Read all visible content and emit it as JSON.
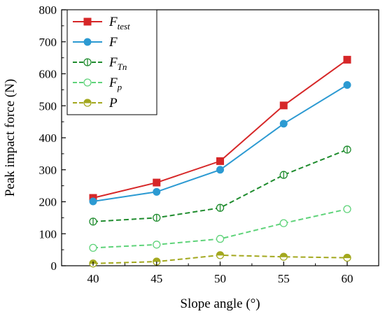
{
  "chart_data": {
    "type": "line",
    "categories": [
      "40",
      "45",
      "50",
      "55",
      "60"
    ],
    "x": [
      40,
      45,
      50,
      55,
      60
    ],
    "xlabel": "Slope angle (°)",
    "ylabel": "Peak impact force (N)",
    "ylim": [
      0,
      800
    ],
    "yticks": [
      0,
      100,
      200,
      300,
      400,
      500,
      600,
      700,
      800
    ],
    "grid": false,
    "legend_position": "top-left",
    "series": [
      {
        "name": "F",
        "sub": "test",
        "color": "#d62728",
        "dash": "solid",
        "marker": "square-filled",
        "values": [
          212,
          260,
          327,
          501,
          644
        ]
      },
      {
        "name": "F",
        "sub": "",
        "color": "#2c9ad2",
        "dash": "solid",
        "marker": "circle-filled",
        "values": [
          201,
          231,
          300,
          444,
          565
        ]
      },
      {
        "name": "F",
        "sub": "Tn",
        "color": "#1f8c2e",
        "dash": "dashed",
        "marker": "circle-slashed",
        "values": [
          138,
          150,
          181,
          284,
          363
        ]
      },
      {
        "name": "F",
        "sub": "p",
        "color": "#5fd37a",
        "dash": "dashed",
        "marker": "circle-open",
        "values": [
          56,
          66,
          84,
          133,
          177
        ]
      },
      {
        "name": "P",
        "sub": "",
        "color": "#a3a81e",
        "dash": "dashed",
        "marker": "circle-half",
        "values": [
          7,
          13,
          33,
          28,
          25
        ]
      }
    ]
  }
}
